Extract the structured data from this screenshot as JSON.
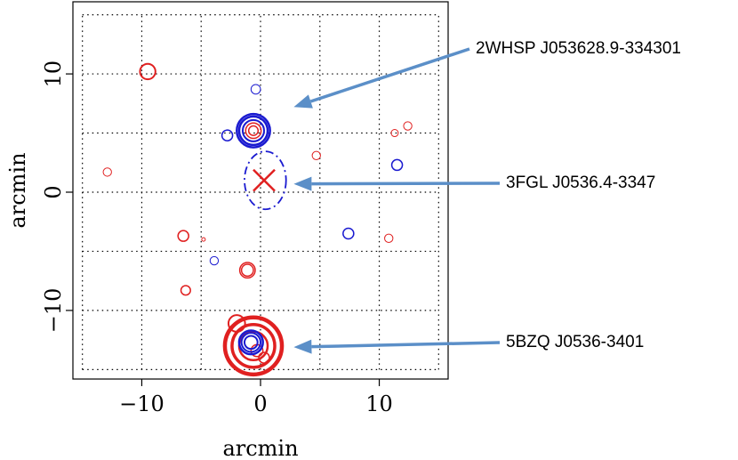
{
  "chart_data": {
    "type": "scatter",
    "xlabel": "arcmin",
    "ylabel": "arcmin",
    "xlim": [
      -15.8,
      15.8
    ],
    "ylim": [
      -15.8,
      16.1
    ],
    "xticks": [
      -10,
      0,
      10
    ],
    "yticks": [
      -10,
      0,
      10
    ],
    "grid_lines": [
      -15,
      -10,
      -5,
      0,
      5,
      10,
      15
    ],
    "grid": true,
    "colors": {
      "red": "#e02020",
      "blue": "#1a1ad0",
      "arrow": "#5b8fc8"
    },
    "series": [
      {
        "color": "red",
        "points": [
          {
            "x": -9.5,
            "y": 10.2,
            "r": 0.65,
            "w": 2
          },
          {
            "x": -0.6,
            "y": 5.2,
            "r": 0.4,
            "w": 1.5
          },
          {
            "x": -0.6,
            "y": 5.2,
            "r": 0.65,
            "w": 1.5
          },
          {
            "x": 4.7,
            "y": 3.1,
            "r": 0.35,
            "w": 1
          },
          {
            "x": 11.3,
            "y": 5.0,
            "r": 0.3,
            "w": 1
          },
          {
            "x": 12.4,
            "y": 5.6,
            "r": 0.35,
            "w": 1
          },
          {
            "x": -12.9,
            "y": 1.7,
            "r": 0.35,
            "w": 1
          },
          {
            "x": -6.5,
            "y": -3.7,
            "r": 0.45,
            "w": 1.5
          },
          {
            "x": -4.8,
            "y": -4.0,
            "r": 0.15,
            "w": 1
          },
          {
            "x": 10.8,
            "y": -3.9,
            "r": 0.35,
            "w": 1
          },
          {
            "x": -1.1,
            "y": -6.6,
            "r": 0.5,
            "w": 1.5
          },
          {
            "x": -1.1,
            "y": -6.6,
            "r": 0.65,
            "w": 1.5
          },
          {
            "x": -6.3,
            "y": -8.3,
            "r": 0.4,
            "w": 1.5
          },
          {
            "x": -2.0,
            "y": -11.1,
            "r": 0.7,
            "w": 2
          },
          {
            "x": -0.6,
            "y": -13.0,
            "r": 1.2,
            "w": 2.5
          },
          {
            "x": -0.6,
            "y": -13.0,
            "r": 1.8,
            "w": 3.5
          },
          {
            "x": -0.6,
            "y": -13.0,
            "r": 2.4,
            "w": 4.5
          },
          {
            "x": -0.3,
            "y": -13.4,
            "r": 0.5,
            "w": 1.5
          },
          {
            "x": 0.3,
            "y": -14.0,
            "r": 0.45,
            "w": 1.5
          }
        ]
      },
      {
        "color": "blue",
        "points": [
          {
            "x": -0.4,
            "y": 8.7,
            "r": 0.4,
            "w": 1
          },
          {
            "x": -0.6,
            "y": 5.2,
            "r": 0.9,
            "w": 2
          },
          {
            "x": -0.6,
            "y": 5.2,
            "r": 1.2,
            "w": 2.5
          },
          {
            "x": -0.6,
            "y": 5.2,
            "r": 1.4,
            "w": 2.5
          },
          {
            "x": -2.8,
            "y": 4.8,
            "r": 0.45,
            "w": 1.5
          },
          {
            "x": 11.5,
            "y": 2.3,
            "r": 0.45,
            "w": 1.5
          },
          {
            "x": 7.4,
            "y": -3.5,
            "r": 0.45,
            "w": 1.5
          },
          {
            "x": -3.9,
            "y": -5.8,
            "r": 0.35,
            "w": 1
          },
          {
            "x": -0.8,
            "y": -12.7,
            "r": 0.55,
            "w": 2
          },
          {
            "x": -0.8,
            "y": -12.7,
            "r": 0.8,
            "w": 2
          },
          {
            "x": -0.8,
            "y": -12.7,
            "r": 1.0,
            "w": 2.5
          }
        ]
      }
    ],
    "error_ellipse": {
      "cx": 0.4,
      "cy": 1.0,
      "rx": 1.75,
      "ry": 2.45,
      "color": "blue"
    },
    "cross": {
      "x": 0.3,
      "y": 1.0,
      "size": 0.9,
      "color": "red"
    },
    "annotations": [
      {
        "text": "2WHSP J053628.9-334301",
        "target": {
          "x": 2.8,
          "y": 7.2
        }
      },
      {
        "text": "3FGL J0536.4-3347",
        "target": {
          "x": 2.8,
          "y": 0.7
        }
      },
      {
        "text": "5BZQ J0536-3401",
        "target": {
          "x": 2.8,
          "y": -13.1
        }
      }
    ]
  }
}
